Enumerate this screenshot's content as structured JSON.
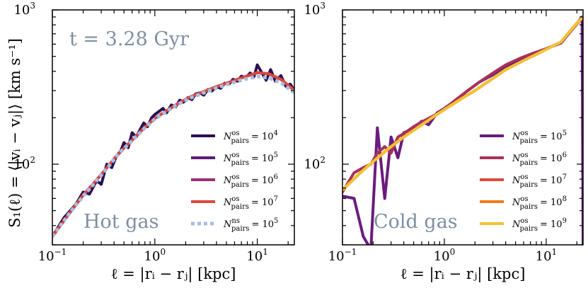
{
  "figure": {
    "ylabel": "S₁(ℓ) = ⟨|vᵢ − vⱼ|⟩ [km s⁻¹]",
    "time_label": "t = 3.28 Gyr"
  },
  "chart_data": [
    {
      "type": "line",
      "panel_label": "Hot gas",
      "xlabel": "ℓ = |rᵢ − rⱼ| [kpc]",
      "xscale": "log",
      "yscale": "log",
      "xlim": [
        0.1,
        23
      ],
      "ylim": [
        30,
        1000
      ],
      "x_ticks": [
        {
          "base": "10",
          "exp": "−1"
        },
        {
          "base": "10",
          "exp": "0"
        },
        {
          "base": "10",
          "exp": "1"
        }
      ],
      "y_ticks": [
        {
          "base": "10",
          "exp": "2"
        },
        {
          "base": "10",
          "exp": "3"
        }
      ],
      "legend_position": "lower right",
      "series": [
        {
          "name": "N_pairs^os = 10^4",
          "legend": {
            "sym": "N",
            "sup": "os",
            "sub": "pairs",
            "rhs": "= 10",
            "rhs_sup": "4"
          },
          "color": "#2b1050",
          "style": "solid",
          "x": [
            0.1,
            0.13,
            0.17,
            0.2,
            0.23,
            0.27,
            0.3,
            0.34,
            0.38,
            0.42,
            0.46,
            0.5,
            0.55,
            0.6,
            0.66,
            0.72,
            0.78,
            0.85,
            0.93,
            1.0,
            1.1,
            1.2,
            1.3,
            1.45,
            1.6,
            1.75,
            1.9,
            2.1,
            2.3,
            2.5,
            2.75,
            3.0,
            3.3,
            3.6,
            4.0,
            4.4,
            4.8,
            5.3,
            5.8,
            6.4,
            7.0,
            7.7,
            8.5,
            9.3,
            10,
            11,
            12.2,
            13.5,
            15,
            17,
            19,
            21,
            23
          ],
          "y": [
            34,
            45,
            55,
            66,
            64,
            78,
            74,
            100,
            95,
            112,
            120,
            138,
            128,
            160,
            150,
            168,
            185,
            175,
            200,
            210,
            220,
            230,
            215,
            242,
            235,
            260,
            252,
            270,
            262,
            285,
            290,
            280,
            305,
            298,
            318,
            310,
            335,
            330,
            355,
            345,
            372,
            362,
            390,
            370,
            440,
            395,
            350,
            410,
            345,
            375,
            320,
            330,
            300
          ]
        },
        {
          "name": "N_pairs^os = 10^5",
          "legend": {
            "sym": "N",
            "sup": "os",
            "sub": "pairs",
            "rhs": "= 10",
            "rhs_sup": "5"
          },
          "color": "#5e1a7a",
          "style": "solid",
          "x": [
            0.1,
            0.15,
            0.2,
            0.27,
            0.35,
            0.45,
            0.6,
            0.8,
            1.0,
            1.3,
            1.7,
            2.2,
            3.0,
            4.0,
            5.5,
            7.5,
            10,
            13,
            17,
            23
          ],
          "y": [
            34,
            49,
            63,
            79,
            97,
            119,
            143,
            174,
            198,
            222,
            248,
            272,
            295,
            318,
            342,
            368,
            392,
            385,
            355,
            300
          ]
        },
        {
          "name": "N_pairs^os = 10^6",
          "legend": {
            "sym": "N",
            "sup": "os",
            "sub": "pairs",
            "rhs": "= 10",
            "rhs_sup": "6"
          },
          "color": "#9b2f6e",
          "style": "solid",
          "x": [
            0.1,
            0.15,
            0.2,
            0.27,
            0.35,
            0.45,
            0.6,
            0.8,
            1.0,
            1.3,
            1.7,
            2.2,
            3.0,
            4.0,
            5.5,
            7.5,
            10,
            13,
            17,
            23
          ],
          "y": [
            34,
            49,
            63,
            79,
            97,
            119,
            143,
            174,
            198,
            222,
            248,
            272,
            295,
            318,
            342,
            368,
            392,
            385,
            355,
            300
          ]
        },
        {
          "name": "N_pairs^os = 10^7",
          "legend": {
            "sym": "N",
            "sup": "os",
            "sub": "pairs",
            "rhs": "= 10",
            "rhs_sup": "7"
          },
          "color": "#d7493f",
          "style": "solid",
          "x": [
            0.1,
            0.15,
            0.2,
            0.27,
            0.35,
            0.45,
            0.6,
            0.8,
            1.0,
            1.3,
            1.7,
            2.2,
            3.0,
            4.0,
            5.5,
            7.5,
            10,
            13,
            17,
            23
          ],
          "y": [
            34,
            49,
            63,
            79,
            97,
            119,
            143,
            174,
            198,
            222,
            248,
            272,
            295,
            318,
            342,
            368,
            392,
            385,
            355,
            300
          ]
        },
        {
          "name": "N_pairs^ns = 10^5",
          "legend": {
            "sym": "N",
            "sup": "ns",
            "sub": "pairs",
            "rhs": "= 10",
            "rhs_sup": "5"
          },
          "color": "#a9bde0",
          "style": "dotted",
          "x": [
            0.1,
            0.15,
            0.2,
            0.27,
            0.35,
            0.45,
            0.6,
            0.8,
            1.0,
            1.3,
            1.7,
            2.2,
            3.0,
            4.0,
            5.5,
            7.5,
            10,
            13,
            17,
            23
          ],
          "y": [
            34,
            49,
            62,
            78,
            96,
            118,
            142,
            172,
            196,
            220,
            245,
            268,
            290,
            312,
            334,
            355,
            370,
            362,
            338,
            290
          ]
        }
      ]
    },
    {
      "type": "line",
      "panel_label": "Cold gas",
      "xlabel": "ℓ = |rᵢ − rⱼ| [kpc]",
      "xscale": "log",
      "yscale": "log",
      "xlim": [
        0.1,
        23
      ],
      "ylim": [
        30,
        1000
      ],
      "x_ticks": [
        {
          "base": "10",
          "exp": "−1"
        },
        {
          "base": "10",
          "exp": "0"
        },
        {
          "base": "10",
          "exp": "1"
        }
      ],
      "y_ticks": [
        {
          "base": "10",
          "exp": "2"
        },
        {
          "base": "10",
          "exp": "3"
        }
      ],
      "legend_position": "lower right",
      "series": [
        {
          "name": "N_pairs^os = 10^5",
          "legend": {
            "sym": "N",
            "sup": "os",
            "sub": "pairs",
            "rhs": "= 10",
            "rhs_sup": "5"
          },
          "color": "#6a1c7e",
          "style": "solid",
          "x": [
            0.1,
            0.13,
            0.16,
            0.19,
            0.22,
            0.26,
            0.3,
            0.35,
            0.4,
            0.5,
            0.6,
            0.7,
            0.85,
            1.0,
            1.3,
            1.7,
            2.2,
            3.0,
            4.0,
            5.5,
            7.5,
            10,
            14,
            19,
            22.5,
            23
          ],
          "y": [
            62,
            60,
            34,
            28,
            172,
            60,
            150,
            110,
            160,
            170,
            190,
            180,
            215,
            230,
            260,
            300,
            340,
            380,
            430,
            470,
            520,
            560,
            610,
            780,
            900,
            30
          ]
        },
        {
          "name": "N_pairs^os = 10^6",
          "legend": {
            "sym": "N",
            "sup": "os",
            "sub": "pairs",
            "rhs": "= 10",
            "rhs_sup": "6"
          },
          "color": "#a8315c",
          "style": "solid",
          "x": [
            0.1,
            0.13,
            0.16,
            0.19,
            0.22,
            0.26,
            0.3,
            0.35,
            0.4,
            0.5,
            0.6,
            0.7,
            0.85,
            1.0,
            1.3,
            1.7,
            2.2,
            3.0,
            4.0,
            5.5,
            7.5,
            10,
            14,
            19,
            23
          ],
          "y": [
            66,
            88,
            95,
            100,
            118,
            130,
            118,
            150,
            158,
            175,
            188,
            198,
            212,
            228,
            262,
            300,
            340,
            390,
            440,
            485,
            525,
            560,
            615,
            780,
            900
          ]
        },
        {
          "name": "N_pairs^os = 10^7",
          "legend": {
            "sym": "N",
            "sup": "os",
            "sub": "pairs",
            "rhs": "= 10",
            "rhs_sup": "7"
          },
          "color": "#dd4a3c",
          "style": "solid",
          "x": [
            0.1,
            0.15,
            0.2,
            0.3,
            0.4,
            0.6,
            0.8,
            1.0,
            1.5,
            2.0,
            3.0,
            4.0,
            6.0,
            8.0,
            10,
            14,
            19,
            23
          ],
          "y": [
            68,
            88,
            104,
            130,
            150,
            180,
            205,
            226,
            268,
            300,
            360,
            410,
            470,
            515,
            555,
            620,
            790,
            900
          ]
        },
        {
          "name": "N_pairs^os = 10^8",
          "legend": {
            "sym": "N",
            "sup": "os",
            "sub": "pairs",
            "rhs": "= 10",
            "rhs_sup": "8"
          },
          "color": "#f07a1d",
          "style": "solid",
          "x": [
            0.1,
            0.15,
            0.2,
            0.3,
            0.4,
            0.6,
            0.8,
            1.0,
            1.5,
            2.0,
            3.0,
            4.0,
            6.0,
            8.0,
            10,
            14,
            19,
            23
          ],
          "y": [
            68,
            88,
            104,
            130,
            150,
            180,
            205,
            226,
            268,
            300,
            360,
            410,
            470,
            515,
            555,
            620,
            790,
            900
          ]
        },
        {
          "name": "N_pairs^os = 10^9",
          "legend": {
            "sym": "N",
            "sup": "os",
            "sub": "pairs",
            "rhs": "= 10",
            "rhs_sup": "9"
          },
          "color": "#f2c233",
          "style": "solid",
          "x": [
            0.1,
            0.15,
            0.2,
            0.3,
            0.4,
            0.6,
            0.8,
            1.0,
            1.5,
            2.0,
            3.0,
            4.0,
            6.0,
            8.0,
            10,
            14,
            19,
            23
          ],
          "y": [
            68,
            88,
            104,
            130,
            150,
            180,
            205,
            226,
            268,
            300,
            360,
            410,
            470,
            515,
            555,
            620,
            790,
            900
          ]
        }
      ]
    }
  ]
}
